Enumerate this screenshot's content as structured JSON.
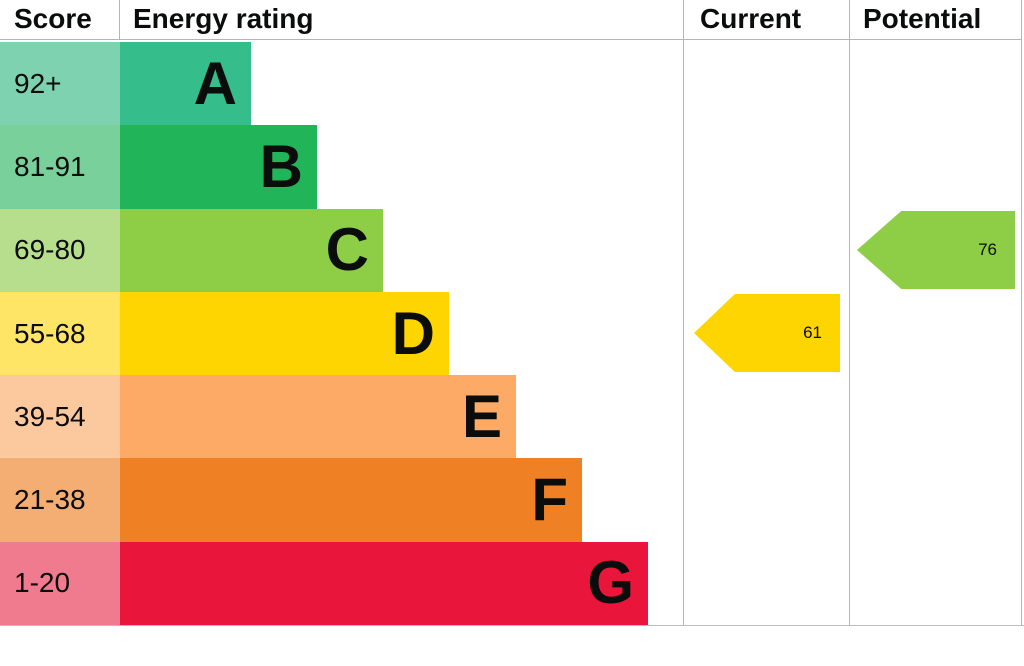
{
  "header": {
    "score": "Score",
    "energy_rating": "Energy rating",
    "current": "Current",
    "potential": "Potential"
  },
  "bands": [
    {
      "score": "92+",
      "letter": "A",
      "color": "#35bd8b",
      "tint": "#7ed2b0"
    },
    {
      "score": "81-91",
      "letter": "B",
      "color": "#22b458",
      "tint": "#79d09a"
    },
    {
      "score": "69-80",
      "letter": "C",
      "color": "#8dce46",
      "tint": "#b7de8d"
    },
    {
      "score": "55-68",
      "letter": "D",
      "color": "#ffd500",
      "tint": "#ffe566"
    },
    {
      "score": "39-54",
      "letter": "E",
      "color": "#fcaa65",
      "tint": "#fcc99e"
    },
    {
      "score": "21-38",
      "letter": "F",
      "color": "#ef8023",
      "tint": "#f4ae74"
    },
    {
      "score": "1-20",
      "letter": "G",
      "color": "#e9153b",
      "tint": "#f17b8e"
    }
  ],
  "markers": {
    "current": {
      "value": "61",
      "band": "D",
      "color": "#ffd500"
    },
    "potential": {
      "value": "76",
      "band": "C",
      "color": "#8dce46"
    }
  },
  "chart_data": {
    "type": "bar",
    "title": "Energy rating",
    "categories": [
      "A",
      "B",
      "C",
      "D",
      "E",
      "F",
      "G"
    ],
    "band_score_ranges": [
      "92+",
      "81-91",
      "69-80",
      "55-68",
      "39-54",
      "21-38",
      "1-20"
    ],
    "band_colors": [
      "#35bd8b",
      "#22b458",
      "#8dce46",
      "#ffd500",
      "#fcaa65",
      "#ef8023",
      "#e9153b"
    ],
    "series": [
      {
        "name": "Current",
        "value": 61,
        "band": "D"
      },
      {
        "name": "Potential",
        "value": 76,
        "band": "C"
      }
    ],
    "xlabel": "Score",
    "ylabel": "",
    "legend_position": "none",
    "grid": false
  }
}
